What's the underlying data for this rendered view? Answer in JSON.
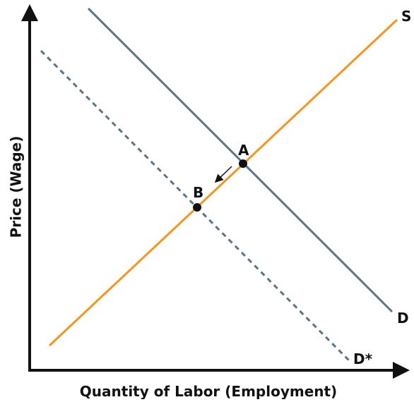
{
  "axes": {
    "y_label": "Price (Wage)",
    "x_label": "Quantity of Labor (Employment)"
  },
  "curves": [
    {
      "label": "S"
    },
    {
      "label": "D"
    },
    {
      "label": "D*"
    }
  ],
  "points": [
    {
      "label": "A"
    },
    {
      "label": "B"
    }
  ]
}
